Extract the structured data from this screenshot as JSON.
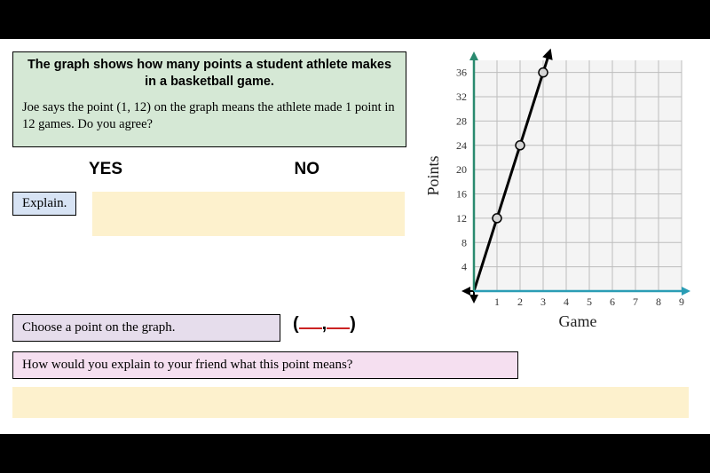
{
  "question": {
    "title": "The graph shows how many points a student athlete makes in a basketball game.",
    "body": "Joe says the point (1, 12) on the graph means the athlete made 1 point in 12 games. Do you agree?"
  },
  "choices": {
    "yes": "YES",
    "no": "NO"
  },
  "explain_label": "Explain.",
  "choose_label": "Choose a point on the graph.",
  "friend_label": "How would you explain to your friend what this point means?",
  "chart": {
    "type": "scatter",
    "xlabel": "Game",
    "ylabel": "Points",
    "label_fontsize": 18,
    "tick_fontsize": 12,
    "xlim": [
      0,
      9
    ],
    "ylim": [
      0,
      38
    ],
    "xticks": [
      1,
      2,
      3,
      4,
      5,
      6,
      7,
      8,
      9
    ],
    "yticks": [
      4,
      8,
      12,
      16,
      20,
      24,
      28,
      32,
      36
    ],
    "points": [
      {
        "x": 1,
        "y": 12
      },
      {
        "x": 2,
        "y": 24
      },
      {
        "x": 3,
        "y": 36
      }
    ],
    "line_through_origin": true,
    "line_slope": 12,
    "background_color": "#f4f4f4",
    "grid_color": "#bdbdbd",
    "axis_color": "#000000",
    "y_axis_arrow_color": "#2a8a6f",
    "x_axis_arrow_color": "#2a9db5",
    "point_fill": "#d5d5d5",
    "point_stroke": "#000000",
    "point_radius": 5,
    "line_color": "#000000",
    "line_width": 3
  }
}
